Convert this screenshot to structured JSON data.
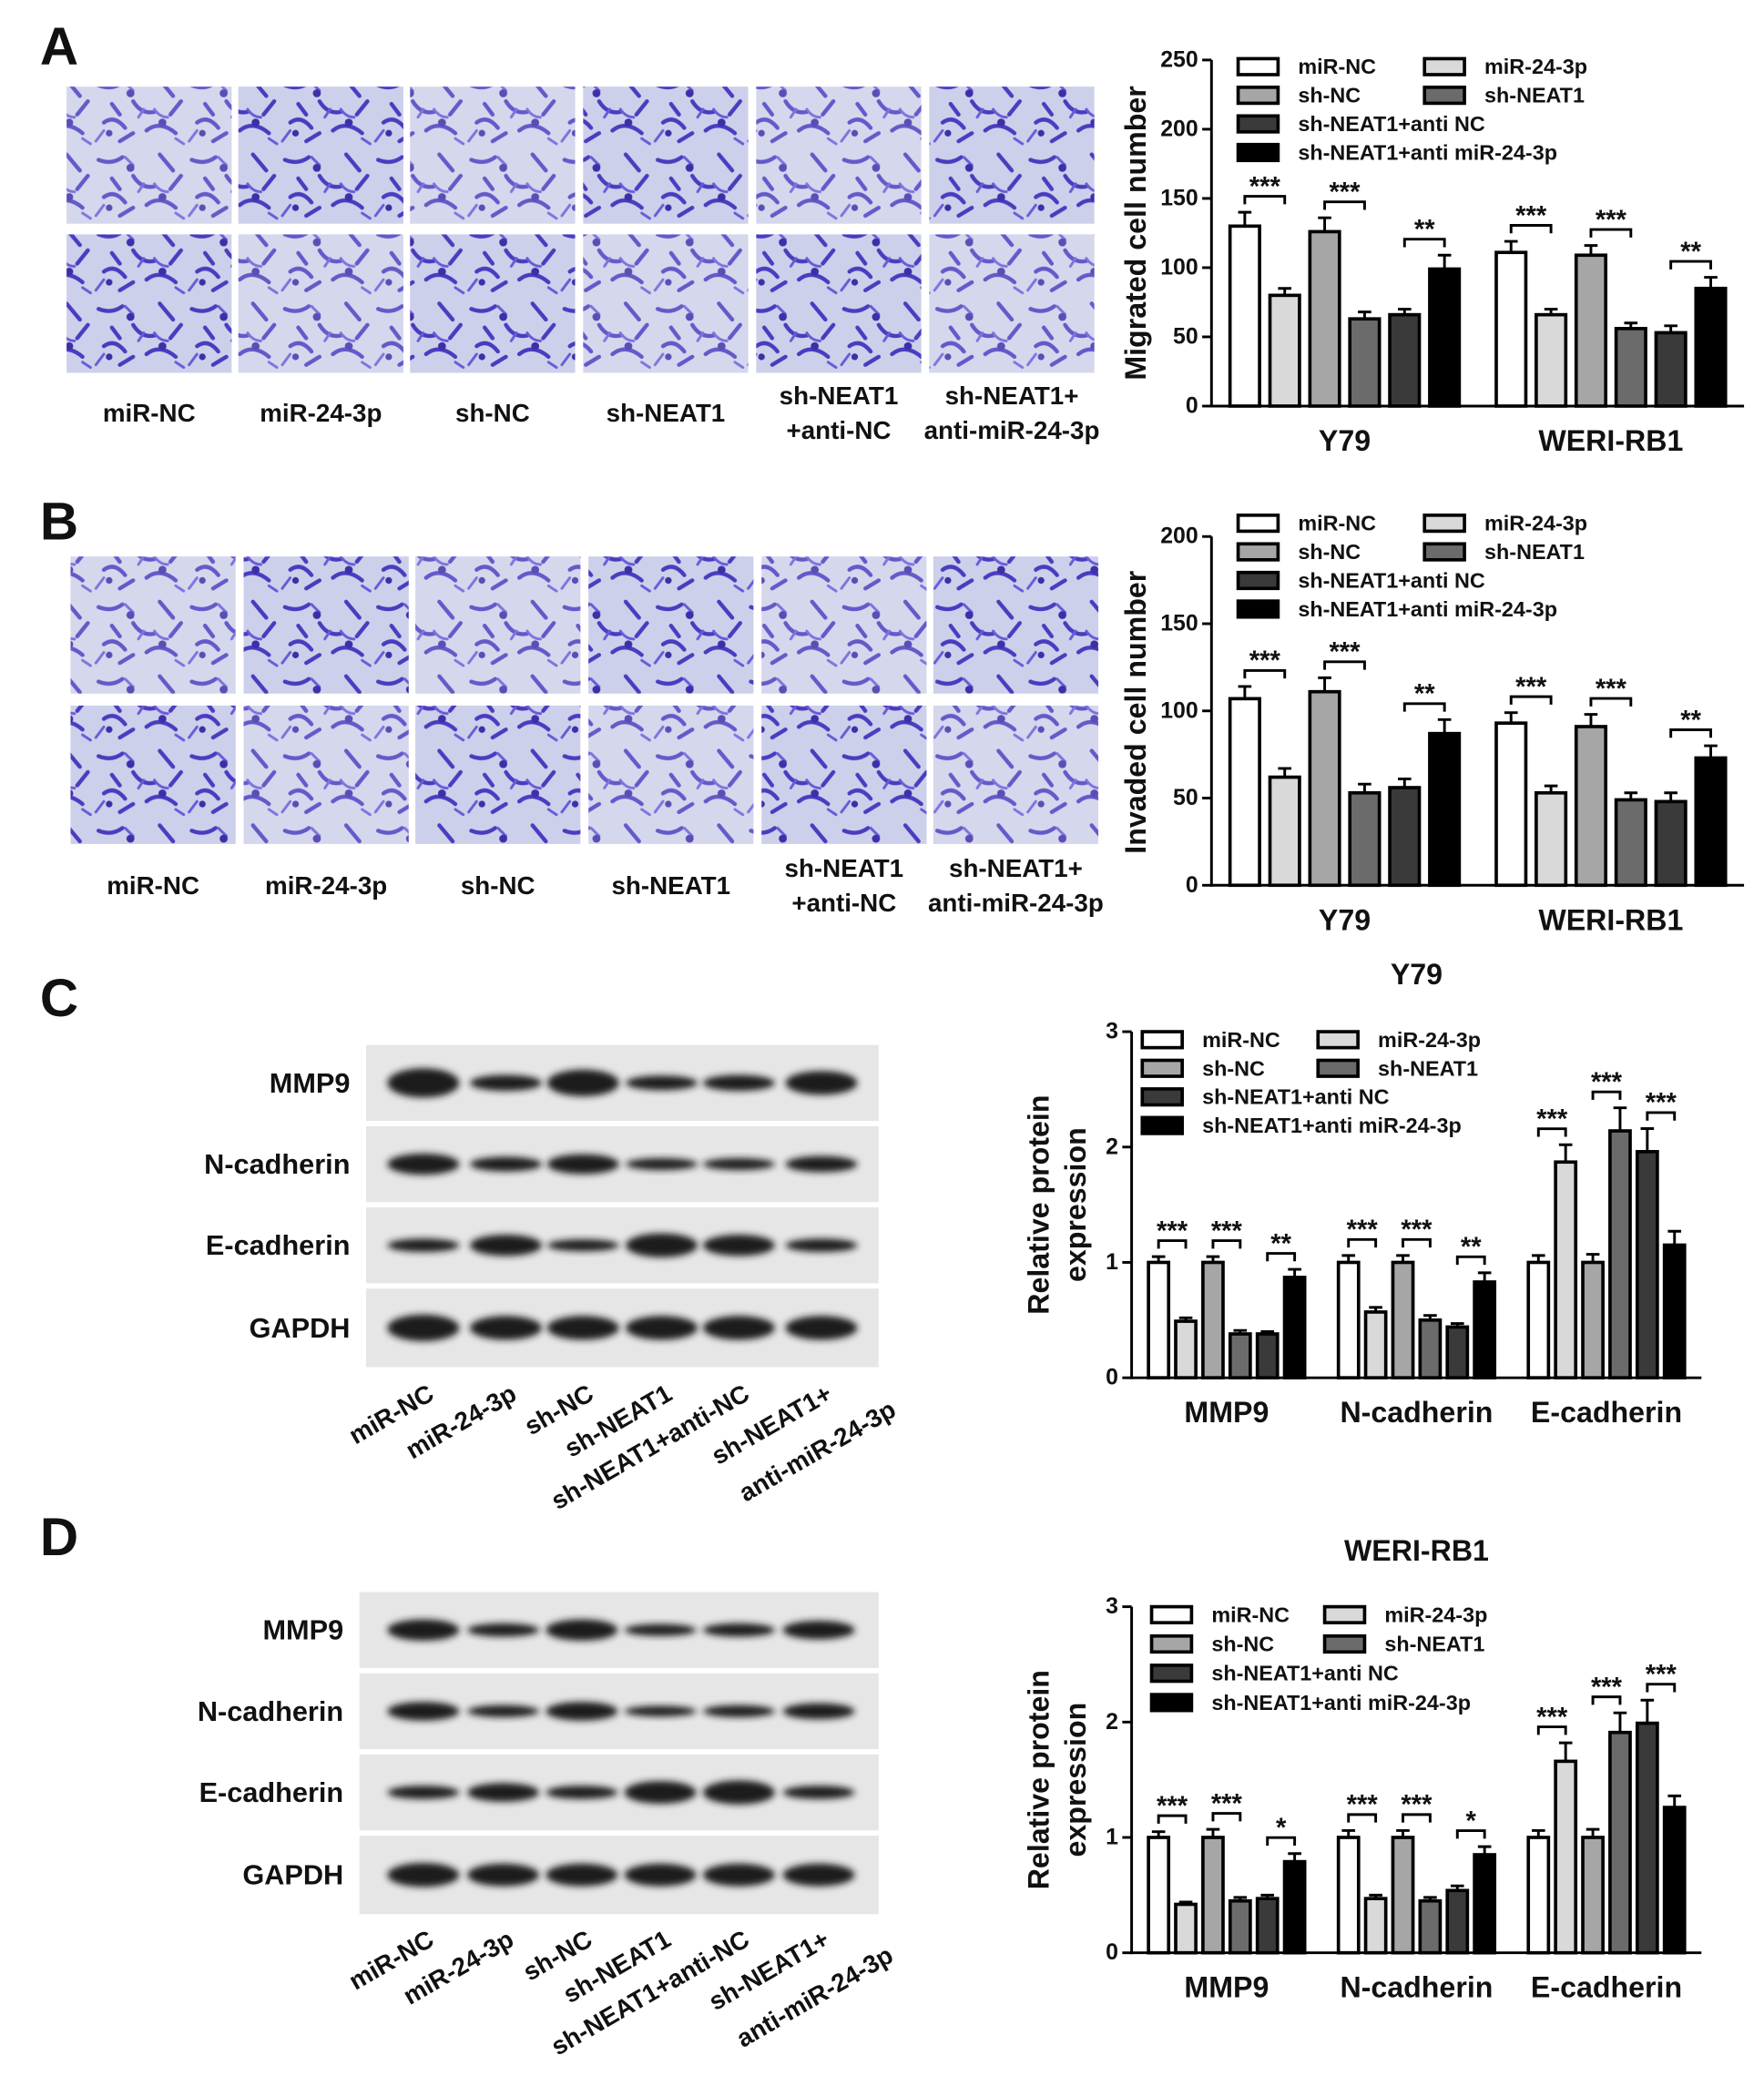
{
  "panel_labels": [
    "A",
    "B",
    "C",
    "D"
  ],
  "migration_images": {
    "labels": [
      [
        "miR-NC"
      ],
      [
        "miR-24-3p"
      ],
      [
        "sh-NC"
      ],
      [
        "sh-NEAT1"
      ],
      [
        "sh-NEAT1",
        "+anti-NC"
      ],
      [
        "sh-NEAT1+",
        "anti-miR-24-3p"
      ]
    ]
  },
  "invasion_images": {
    "labels": [
      [
        "miR-NC"
      ],
      [
        "miR-24-3p"
      ],
      [
        "sh-NC"
      ],
      [
        "sh-NEAT1"
      ],
      [
        "sh-NEAT1",
        "+anti-NC"
      ],
      [
        "sh-NEAT1+",
        "anti-miR-24-3p"
      ]
    ]
  },
  "blots": [
    {
      "rows": [
        "MMP9",
        "N-cadherin",
        "E-cadherin",
        "GAPDH"
      ],
      "lanes": [
        [
          "miR-NC"
        ],
        [
          "miR-24-3p"
        ],
        [
          "sh-NC"
        ],
        [
          "sh-NEAT1"
        ],
        [
          "sh-NEAT1+anti-NC"
        ],
        [
          "sh-NEAT1+",
          "anti-miR-24-3p"
        ]
      ]
    },
    {
      "rows": [
        "MMP9",
        "N-cadherin",
        "E-cadherin",
        "GAPDH"
      ],
      "lanes": [
        [
          "miR-NC"
        ],
        [
          "miR-24-3p"
        ],
        [
          "sh-NC"
        ],
        [
          "sh-NEAT1"
        ],
        [
          "sh-NEAT1+anti-NC"
        ],
        [
          "sh-NEAT1+",
          "anti-miR-24-3p"
        ]
      ]
    }
  ],
  "chart_data": [
    {
      "type": "bar",
      "ylabel": [
        "Migrated cell number"
      ],
      "categories": [
        "Y79",
        "WERI-RB1"
      ],
      "series": [
        {
          "name": "miR-NC",
          "color": "#ffffff",
          "values": [
            130,
            111
          ],
          "errors": [
            10,
            8
          ]
        },
        {
          "name": "miR-24-3p",
          "color": "#d9d9d9",
          "values": [
            80,
            66
          ],
          "errors": [
            5,
            4
          ]
        },
        {
          "name": "sh-NC",
          "color": "#a6a6a6",
          "values": [
            126,
            109
          ],
          "errors": [
            10,
            7
          ]
        },
        {
          "name": "sh-NEAT1",
          "color": "#6b6b6b",
          "values": [
            63,
            56
          ],
          "errors": [
            5,
            4
          ]
        },
        {
          "name": "sh-NEAT1+anti NC",
          "color": "#3a3a3a",
          "values": [
            66,
            53
          ],
          "errors": [
            4,
            5
          ]
        },
        {
          "name": "sh-NEAT1+anti miR-24-3p",
          "color": "#000000",
          "values": [
            99,
            85
          ],
          "errors": [
            10,
            8
          ]
        }
      ],
      "ylim": [
        0,
        250
      ],
      "yticks": [
        0,
        50,
        100,
        150,
        200,
        250
      ],
      "annotations": [
        {
          "category": 0,
          "series": [
            0,
            1
          ],
          "label": "***"
        },
        {
          "category": 0,
          "series": [
            2,
            3
          ],
          "label": "***"
        },
        {
          "category": 0,
          "series": [
            4,
            5
          ],
          "label": "**"
        },
        {
          "category": 1,
          "series": [
            0,
            1
          ],
          "label": "***"
        },
        {
          "category": 1,
          "series": [
            2,
            3
          ],
          "label": "***"
        },
        {
          "category": 1,
          "series": [
            4,
            5
          ],
          "label": "**"
        }
      ]
    },
    {
      "type": "bar",
      "ylabel": [
        "Invaded cell number"
      ],
      "categories": [
        "Y79",
        "WERI-RB1"
      ],
      "series": [
        {
          "name": "miR-NC",
          "color": "#ffffff",
          "values": [
            107,
            93
          ],
          "errors": [
            7,
            6
          ]
        },
        {
          "name": "miR-24-3p",
          "color": "#d9d9d9",
          "values": [
            62,
            53
          ],
          "errors": [
            5,
            4
          ]
        },
        {
          "name": "sh-NC",
          "color": "#a6a6a6",
          "values": [
            111,
            91
          ],
          "errors": [
            8,
            7
          ]
        },
        {
          "name": "sh-NEAT1",
          "color": "#6b6b6b",
          "values": [
            53,
            49
          ],
          "errors": [
            5,
            4
          ]
        },
        {
          "name": "sh-NEAT1+anti NC",
          "color": "#3a3a3a",
          "values": [
            56,
            48
          ],
          "errors": [
            5,
            5
          ]
        },
        {
          "name": "sh-NEAT1+anti miR-24-3p",
          "color": "#000000",
          "values": [
            87,
            73
          ],
          "errors": [
            8,
            7
          ]
        }
      ],
      "ylim": [
        0,
        200
      ],
      "yticks": [
        0,
        50,
        100,
        150,
        200
      ],
      "annotations": [
        {
          "category": 0,
          "series": [
            0,
            1
          ],
          "label": "***"
        },
        {
          "category": 0,
          "series": [
            2,
            3
          ],
          "label": "***"
        },
        {
          "category": 0,
          "series": [
            4,
            5
          ],
          "label": "**"
        },
        {
          "category": 1,
          "series": [
            0,
            1
          ],
          "label": "***"
        },
        {
          "category": 1,
          "series": [
            2,
            3
          ],
          "label": "***"
        },
        {
          "category": 1,
          "series": [
            4,
            5
          ],
          "label": "**"
        }
      ]
    },
    {
      "type": "bar",
      "title": "Y79",
      "ylabel": [
        "Relative protein",
        "expression"
      ],
      "categories": [
        "MMP9",
        "N-cadherin",
        "E-cadherin"
      ],
      "series": [
        {
          "name": "miR-NC",
          "color": "#ffffff",
          "values": [
            1.0,
            1.0,
            1.0
          ],
          "errors": [
            0.05,
            0.06,
            0.06
          ]
        },
        {
          "name": "miR-24-3p",
          "color": "#d9d9d9",
          "values": [
            0.49,
            0.57,
            1.87
          ],
          "errors": [
            0.03,
            0.04,
            0.15
          ]
        },
        {
          "name": "sh-NC",
          "color": "#a6a6a6",
          "values": [
            1.0,
            1.0,
            1.0
          ],
          "errors": [
            0.05,
            0.06,
            0.07
          ]
        },
        {
          "name": "sh-NEAT1",
          "color": "#6b6b6b",
          "values": [
            0.38,
            0.5,
            2.14
          ],
          "errors": [
            0.03,
            0.04,
            0.2
          ]
        },
        {
          "name": "sh-NEAT1+anti NC",
          "color": "#3a3a3a",
          "values": [
            0.38,
            0.44,
            1.96
          ],
          "errors": [
            0.02,
            0.03,
            0.2
          ]
        },
        {
          "name": "sh-NEAT1+anti miR-24-3p",
          "color": "#000000",
          "values": [
            0.87,
            0.83,
            1.15
          ],
          "errors": [
            0.07,
            0.08,
            0.12
          ]
        }
      ],
      "ylim": [
        0,
        3
      ],
      "yticks": [
        0,
        1,
        2,
        3
      ],
      "annotations": [
        {
          "category": 0,
          "series": [
            0,
            1
          ],
          "label": "***"
        },
        {
          "category": 0,
          "series": [
            2,
            3
          ],
          "label": "***"
        },
        {
          "category": 0,
          "series": [
            4,
            5
          ],
          "label": "**"
        },
        {
          "category": 1,
          "series": [
            0,
            1
          ],
          "label": "***"
        },
        {
          "category": 1,
          "series": [
            2,
            3
          ],
          "label": "***"
        },
        {
          "category": 1,
          "series": [
            4,
            5
          ],
          "label": "**"
        },
        {
          "category": 2,
          "series": [
            0,
            1
          ],
          "label": "***"
        },
        {
          "category": 2,
          "series": [
            2,
            3
          ],
          "label": "***"
        },
        {
          "category": 2,
          "series": [
            4,
            5
          ],
          "label": "***"
        }
      ]
    },
    {
      "type": "bar",
      "title": "WERI-RB1",
      "ylabel": [
        "Relative protein",
        "expression"
      ],
      "categories": [
        "MMP9",
        "N-cadherin",
        "E-cadherin"
      ],
      "series": [
        {
          "name": "miR-NC",
          "color": "#ffffff",
          "values": [
            1.0,
            1.0,
            1.0
          ],
          "errors": [
            0.05,
            0.06,
            0.06
          ]
        },
        {
          "name": "miR-24-3p",
          "color": "#d9d9d9",
          "values": [
            0.42,
            0.47,
            1.66
          ],
          "errors": [
            0.02,
            0.03,
            0.16
          ]
        },
        {
          "name": "sh-NC",
          "color": "#a6a6a6",
          "values": [
            1.0,
            1.0,
            1.0
          ],
          "errors": [
            0.07,
            0.06,
            0.07
          ]
        },
        {
          "name": "sh-NEAT1",
          "color": "#6b6b6b",
          "values": [
            0.45,
            0.45,
            1.91
          ],
          "errors": [
            0.03,
            0.03,
            0.17
          ]
        },
        {
          "name": "sh-NEAT1+anti NC",
          "color": "#3a3a3a",
          "values": [
            0.47,
            0.54,
            1.99
          ],
          "errors": [
            0.03,
            0.04,
            0.2
          ]
        },
        {
          "name": "sh-NEAT1+anti miR-24-3p",
          "color": "#000000",
          "values": [
            0.79,
            0.85,
            1.26
          ],
          "errors": [
            0.07,
            0.07,
            0.1
          ]
        }
      ],
      "ylim": [
        0,
        3
      ],
      "yticks": [
        0,
        1,
        2,
        3
      ],
      "annotations": [
        {
          "category": 0,
          "series": [
            0,
            1
          ],
          "label": "***"
        },
        {
          "category": 0,
          "series": [
            2,
            3
          ],
          "label": "***"
        },
        {
          "category": 0,
          "series": [
            4,
            5
          ],
          "label": "*"
        },
        {
          "category": 1,
          "series": [
            0,
            1
          ],
          "label": "***"
        },
        {
          "category": 1,
          "series": [
            2,
            3
          ],
          "label": "***"
        },
        {
          "category": 1,
          "series": [
            4,
            5
          ],
          "label": "*"
        },
        {
          "category": 2,
          "series": [
            0,
            1
          ],
          "label": "***"
        },
        {
          "category": 2,
          "series": [
            2,
            3
          ],
          "label": "***"
        },
        {
          "category": 2,
          "series": [
            4,
            5
          ],
          "label": "***"
        }
      ]
    }
  ]
}
